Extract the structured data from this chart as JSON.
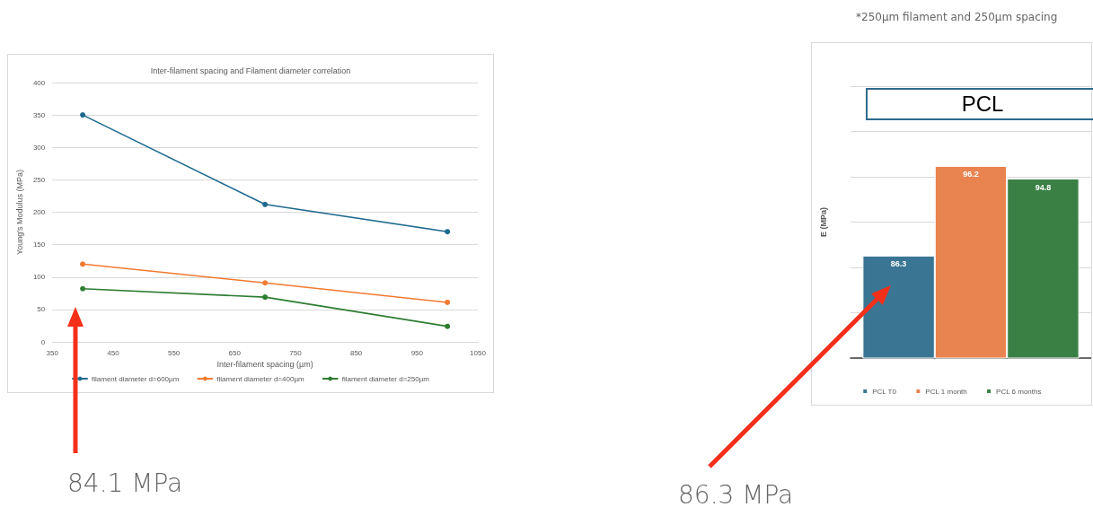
{
  "chart_data": [
    {
      "type": "line",
      "title": "Inter-filament spacing and Filament diameter correlation",
      "xlabel": "Inter-filament spacing (µm)",
      "ylabel": "Young's Modulus (MPa)",
      "x": [
        400,
        700,
        1000
      ],
      "series": [
        {
          "name": "filament diameter d=600µm",
          "color": "#1f6a8f",
          "values": [
            350,
            212,
            170
          ]
        },
        {
          "name": "filament diameter d=400µm",
          "color": "#f07a30",
          "values": [
            120,
            91,
            61
          ]
        },
        {
          "name": "filament diameter d=250µm",
          "color": "#2e7d32",
          "values": [
            82,
            69,
            24
          ]
        }
      ],
      "xlim": [
        350,
        1050
      ],
      "xticks": [
        350,
        450,
        550,
        650,
        750,
        850,
        950,
        1050
      ],
      "ylim": [
        0,
        400
      ],
      "yticks": [
        0,
        50,
        100,
        150,
        200,
        250,
        300,
        350,
        400
      ],
      "grid": "y",
      "legend": "bottom",
      "marker": "circle",
      "line_style": "solid",
      "annotations": [
        "84.1 MPa"
      ]
    },
    {
      "type": "bar",
      "title": "PCL",
      "subtitle": "*250µm filament and 250µm spacing",
      "ylabel": "E (MPa)",
      "categories": [
        null
      ],
      "series": [
        {
          "name": "PCL T0",
          "color": "#3a7694",
          "values": [
            86.3
          ]
        },
        {
          "name": "PCL 1 month",
          "color": "#e9834f",
          "values": [
            96.2
          ]
        },
        {
          "name": "PCL 6 months",
          "color": "#3a8045",
          "values": [
            94.8
          ]
        }
      ],
      "ylim": [
        75,
        105
      ],
      "yticks": [
        {
          "value": 75,
          "label": null
        },
        {
          "value": 80,
          "label": null
        },
        {
          "value": 85,
          "label": null
        },
        {
          "value": 90,
          "label": null
        },
        {
          "value": 95,
          "label": null
        },
        {
          "value": 100,
          "label": null
        },
        {
          "value": 105,
          "label": null
        }
      ],
      "grid": "y",
      "legend": "bottom",
      "data_labels": true,
      "annotations": [
        "86.3 MPa"
      ]
    }
  ]
}
